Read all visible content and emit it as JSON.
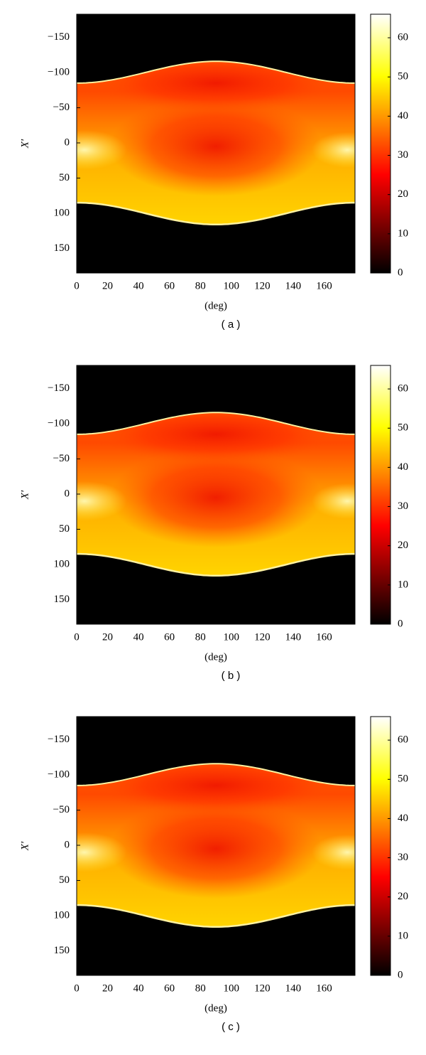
{
  "chart_data": [
    {
      "type": "heatmap",
      "caption": "( a )",
      "x_label": "(deg)",
      "y_label": "X′",
      "colormap": "hot",
      "xlim": [
        0,
        180
      ],
      "xticks": [
        0,
        20,
        40,
        60,
        80,
        100,
        120,
        140,
        160
      ],
      "ylim": [
        -183,
        185
      ],
      "y_inverted": true,
      "yticks": [
        {
          "value": -150,
          "label": "−150"
        },
        {
          "value": -100,
          "label": "−100"
        },
        {
          "value": -50,
          "label": "−50"
        },
        0,
        50,
        100,
        150
      ],
      "clim": [
        0,
        66
      ],
      "cticks": [
        0,
        10,
        20,
        30,
        40,
        50,
        60
      ]
    },
    {
      "type": "heatmap",
      "caption": "( b )",
      "x_label": "(deg)",
      "y_label": "X′",
      "colormap": "hot",
      "xlim": [
        0,
        180
      ],
      "xticks": [
        0,
        20,
        40,
        60,
        80,
        100,
        120,
        140,
        160
      ],
      "ylim": [
        -183,
        185
      ],
      "y_inverted": true,
      "yticks": [
        {
          "value": -150,
          "label": "−150"
        },
        {
          "value": -100,
          "label": "−100"
        },
        {
          "value": -50,
          "label": "−50"
        },
        0,
        50,
        100,
        150
      ],
      "clim": [
        0,
        66
      ],
      "cticks": [
        0,
        10,
        20,
        30,
        40,
        50,
        60
      ]
    },
    {
      "type": "heatmap",
      "caption": "( c )",
      "x_label": "(deg)",
      "y_label": "X′",
      "colormap": "hot",
      "xlim": [
        0,
        180
      ],
      "xticks": [
        0,
        20,
        40,
        60,
        80,
        100,
        120,
        140,
        160
      ],
      "ylim": [
        -183,
        185
      ],
      "y_inverted": true,
      "yticks": [
        {
          "value": -150,
          "label": "−150"
        },
        {
          "value": -100,
          "label": "−100"
        },
        {
          "value": -50,
          "label": "−50"
        },
        0,
        50,
        100,
        150
      ],
      "clim": [
        0,
        66
      ],
      "cticks": [
        0,
        10,
        20,
        30,
        40,
        50,
        60
      ]
    }
  ]
}
